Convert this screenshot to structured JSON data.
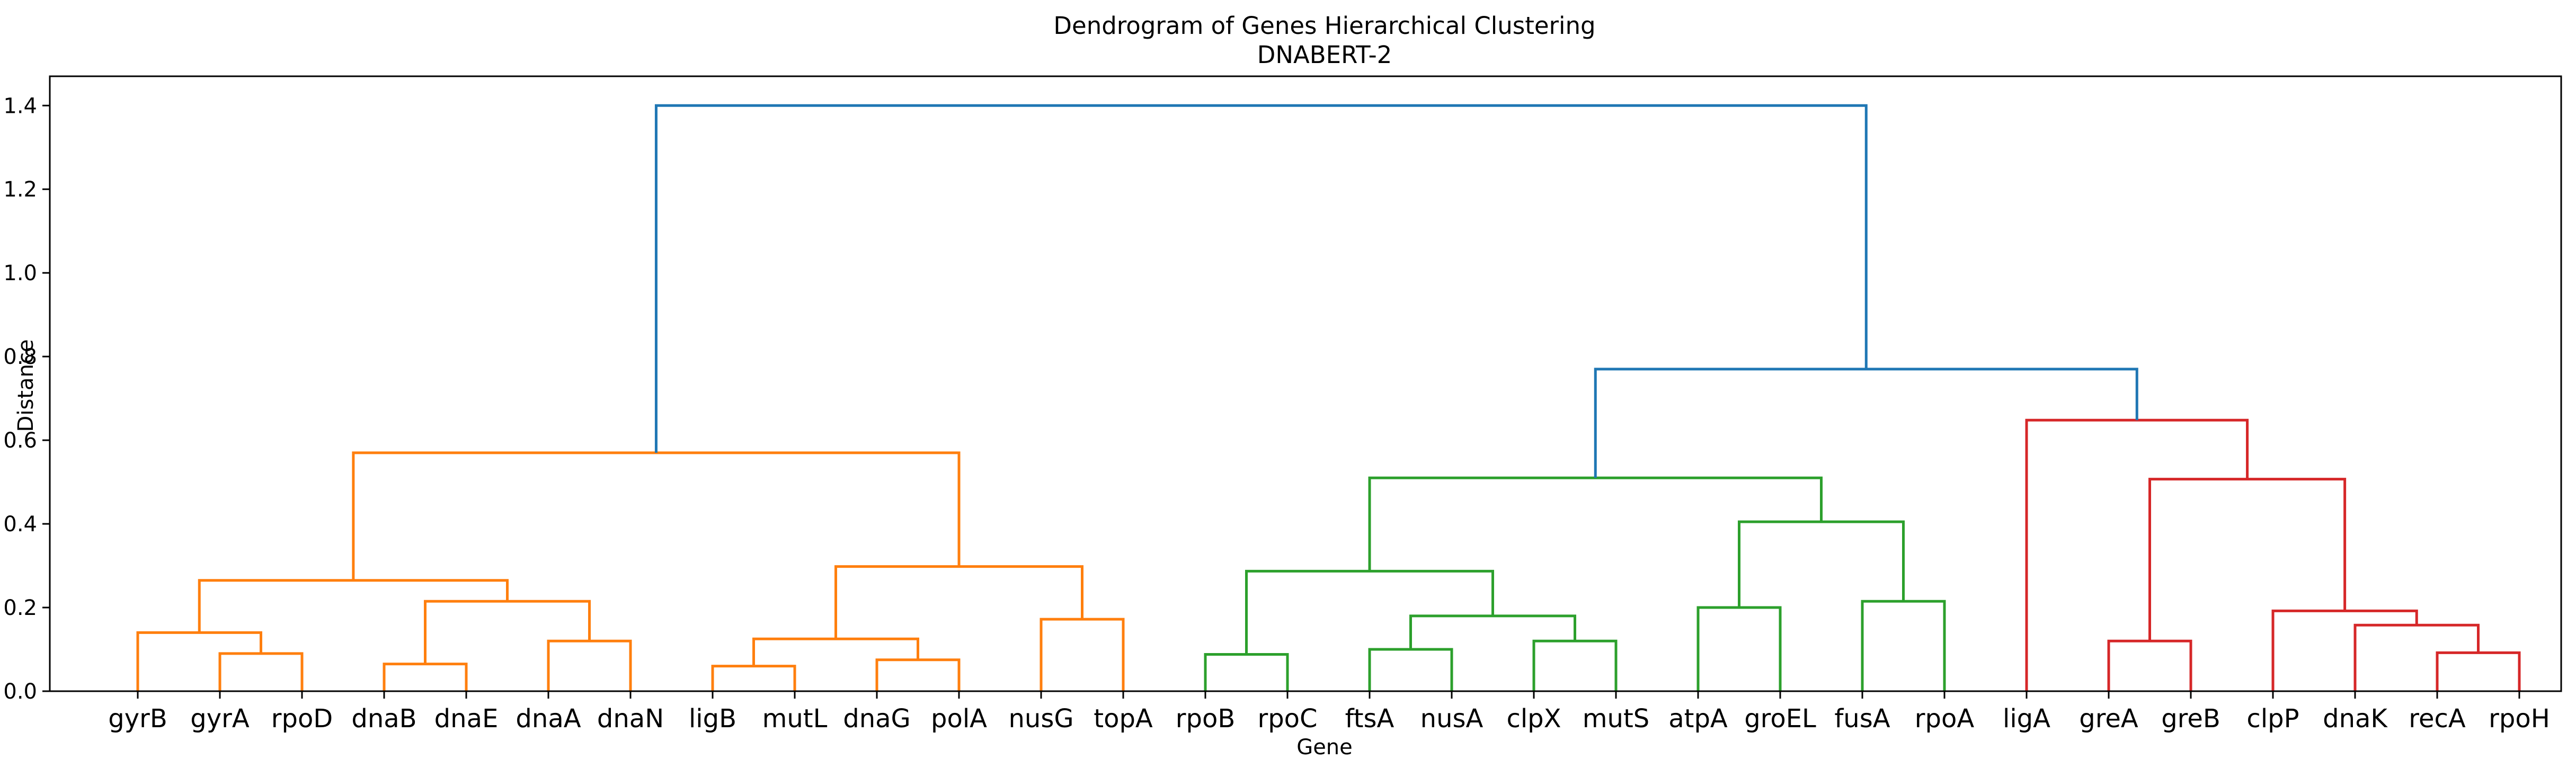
{
  "chart_data": {
    "type": "dendrogram",
    "title": "Dendrogram of Genes Hierarchical Clustering",
    "subtitle": "DNABERT-2",
    "xlabel": "Gene",
    "ylabel": "Distance",
    "ylim": [
      0,
      1.47
    ],
    "yticks": [
      "0.0",
      "0.2",
      "0.4",
      "0.6",
      "0.8",
      "1.0",
      "1.2",
      "1.4"
    ],
    "grid": false,
    "leaves": [
      "gyrB",
      "gyrA",
      "rpoD",
      "dnaB",
      "dnaE",
      "dnaA",
      "dnaN",
      "ligB",
      "mutL",
      "dnaG",
      "polA",
      "nusG",
      "topA",
      "rpoB",
      "rpoC",
      "ftsA",
      "nusA",
      "clpX",
      "mutS",
      "atpA",
      "groEL",
      "fusA",
      "rpoA",
      "ligA",
      "greA",
      "greB",
      "clpP",
      "dnaK",
      "recA",
      "rpoH"
    ],
    "colors": {
      "orange": "#ff7f0e",
      "green": "#2ca02c",
      "red": "#d62728",
      "blue": "#1f77b4"
    },
    "merges": [
      {
        "left": "gyrA",
        "right": "rpoD",
        "height": 0.09,
        "color": "orange"
      },
      {
        "left": "gyrB",
        "right": 0,
        "height": 0.14,
        "color": "orange"
      },
      {
        "left": "dnaB",
        "right": "dnaE",
        "height": 0.065,
        "color": "orange"
      },
      {
        "left": "dnaA",
        "right": "dnaN",
        "height": 0.12,
        "color": "orange"
      },
      {
        "left": 2,
        "right": 3,
        "height": 0.215,
        "color": "orange"
      },
      {
        "left": 1,
        "right": 4,
        "height": 0.265,
        "color": "orange"
      },
      {
        "left": "ligB",
        "right": "mutL",
        "height": 0.06,
        "color": "orange"
      },
      {
        "left": "dnaG",
        "right": "polA",
        "height": 0.075,
        "color": "orange"
      },
      {
        "left": 6,
        "right": 7,
        "height": 0.125,
        "color": "orange"
      },
      {
        "left": "nusG",
        "right": "topA",
        "height": 0.172,
        "color": "orange"
      },
      {
        "left": 8,
        "right": 9,
        "height": 0.298,
        "color": "orange"
      },
      {
        "left": 5,
        "right": 10,
        "height": 0.57,
        "color": "orange"
      },
      {
        "left": "rpoB",
        "right": "rpoC",
        "height": 0.088,
        "color": "green"
      },
      {
        "left": "ftsA",
        "right": "nusA",
        "height": 0.1,
        "color": "green"
      },
      {
        "left": "clpX",
        "right": "mutS",
        "height": 0.12,
        "color": "green"
      },
      {
        "left": 13,
        "right": 14,
        "height": 0.18,
        "color": "green"
      },
      {
        "left": 12,
        "right": 15,
        "height": 0.287,
        "color": "green"
      },
      {
        "left": "atpA",
        "right": "groEL",
        "height": 0.2,
        "color": "green"
      },
      {
        "left": "fusA",
        "right": "rpoA",
        "height": 0.215,
        "color": "green"
      },
      {
        "left": 17,
        "right": 18,
        "height": 0.405,
        "color": "green"
      },
      {
        "left": 16,
        "right": 19,
        "height": 0.51,
        "color": "green"
      },
      {
        "left": "greA",
        "right": "greB",
        "height": 0.12,
        "color": "red"
      },
      {
        "left": "recA",
        "right": "rpoH",
        "height": 0.092,
        "color": "red"
      },
      {
        "left": "dnaK",
        "right": 22,
        "height": 0.158,
        "color": "red"
      },
      {
        "left": "clpP",
        "right": 23,
        "height": 0.192,
        "color": "red"
      },
      {
        "left": 21,
        "right": 24,
        "height": 0.507,
        "color": "red"
      },
      {
        "left": "ligA",
        "right": 25,
        "height": 0.648,
        "color": "red"
      },
      {
        "left": 20,
        "right": 26,
        "height": 0.77,
        "color": "blue"
      },
      {
        "left": 11,
        "right": 27,
        "height": 1.4,
        "color": "blue"
      }
    ]
  }
}
